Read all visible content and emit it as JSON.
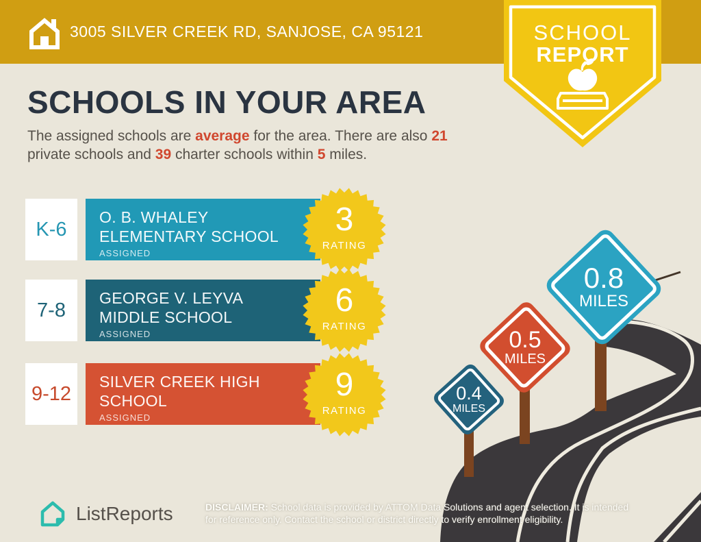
{
  "banner": {
    "address": "3005 SILVER CREEK RD, SANJOSE, CA 95121",
    "bg": "#D09E12"
  },
  "badge": {
    "line1": "SCHOOL",
    "line2": "REPORT",
    "bg": "#F2C613"
  },
  "title": "SCHOOLS IN YOUR AREA",
  "intro": {
    "segments": [
      {
        "text": "The assigned schools are ",
        "em": false
      },
      {
        "text": "average",
        "em": true
      },
      {
        "text": " for the area. There are also ",
        "em": false
      },
      {
        "text": "21",
        "em": true
      },
      {
        "text": " private schools and ",
        "em": false
      },
      {
        "text": "39",
        "em": true
      },
      {
        "text": " charter schools within ",
        "em": false
      },
      {
        "text": "5",
        "em": true
      },
      {
        "text": " miles.",
        "em": false
      }
    ]
  },
  "schools": [
    {
      "grades": "K-6",
      "name_line1": "O. B. WHALEY",
      "name_line2": "ELEMENTARY SCHOOL",
      "status": "ASSIGNED",
      "rating": "3",
      "rating_label": "RATING",
      "color": "#2199B6",
      "grade_color": "#2596B2"
    },
    {
      "grades": "7-8",
      "name_line1": "GEORGE V. LEYVA",
      "name_line2": "MIDDLE SCHOOL",
      "status": "ASSIGNED",
      "rating": "6",
      "rating_label": "RATING",
      "color": "#1E6377",
      "grade_color": "#1E6377"
    },
    {
      "grades": "9-12",
      "name_line1": "SILVER CREEK HIGH",
      "name_line2": "SCHOOL",
      "status": "ASSIGNED",
      "rating": "9",
      "rating_label": "RATING",
      "color": "#D55233",
      "grade_color": "#C74A2C"
    }
  ],
  "signs": [
    {
      "value": "0.4",
      "unit": "MILES",
      "color": "#24627D"
    },
    {
      "value": "0.5",
      "unit": "MILES",
      "color": "#D24E2F"
    },
    {
      "value": "0.8",
      "unit": "MILES",
      "color": "#2BA3C2"
    }
  ],
  "footer": {
    "brand": "ListReports",
    "disclaimer_label": "DISCLAIMER:",
    "disclaimer_rest1": " School data is provided by ATTOM Data Solutions and agent selection. It is intended",
    "disclaimer_line2": "for reference only. Contact the school or district directly to verify enrollment eligibility."
  },
  "chart_data": {
    "type": "table",
    "title": "SCHOOLS IN YOUR AREA",
    "categories": [
      "O. B. WHALEY ELEMENTARY SCHOOL",
      "GEORGE V. LEYVA MIDDLE SCHOOL",
      "SILVER CREEK HIGH SCHOOL"
    ],
    "grades": [
      "K-6",
      "7-8",
      "9-12"
    ],
    "series": [
      {
        "name": "rating",
        "values": [
          3,
          6,
          9
        ]
      },
      {
        "name": "distance_miles",
        "values": [
          0.8,
          0.4,
          0.5
        ]
      }
    ],
    "stats": {
      "assigned_quality": "average",
      "private_schools": 21,
      "charter_schools": 39,
      "radius_miles": 5
    }
  }
}
